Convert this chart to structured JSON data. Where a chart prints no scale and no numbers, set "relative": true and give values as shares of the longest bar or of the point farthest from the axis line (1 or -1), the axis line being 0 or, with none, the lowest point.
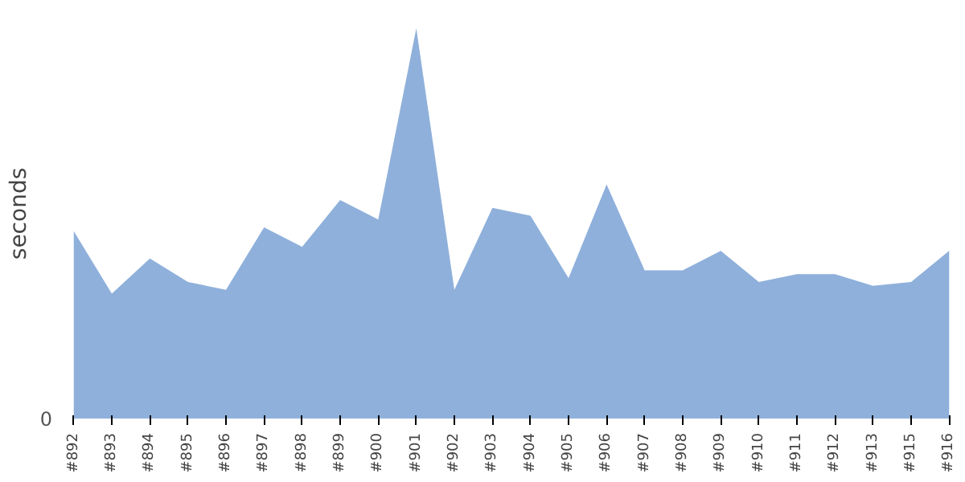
{
  "chart_data": {
    "type": "area",
    "ylabel": "seconds",
    "relative": true,
    "grid": false,
    "categories": [
      "#892",
      "#893",
      "#894",
      "#895",
      "#896",
      "#897",
      "#898",
      "#899",
      "#900",
      "#901",
      "#902",
      "#903",
      "#904",
      "#905",
      "#906",
      "#907",
      "#908",
      "#909",
      "#910",
      "#911",
      "#912",
      "#913",
      "#915",
      "#916"
    ],
    "series": [
      {
        "color": "#8fb0db",
        "values": [
          0.48,
          0.32,
          0.41,
          0.35,
          0.33,
          0.49,
          0.44,
          0.56,
          0.51,
          1,
          0.33,
          0.54,
          0.52,
          0.36,
          0.6,
          0.38,
          0.38,
          0.43,
          0.35,
          0.37,
          0.37,
          0.34,
          0.35,
          0.43
        ]
      }
    ],
    "annotations": [
      "0"
    ]
  }
}
